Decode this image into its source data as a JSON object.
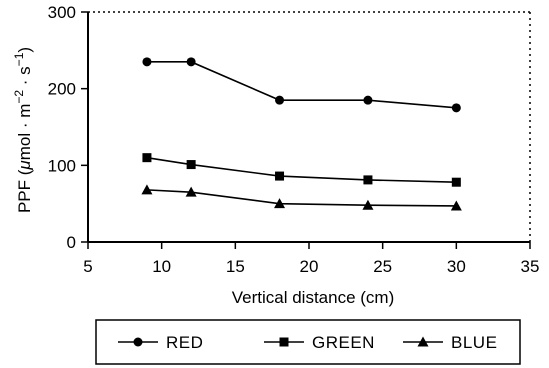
{
  "chart_data": {
    "type": "line",
    "xlabel": "Vertical distance (cm)",
    "ylabel_parts": [
      "PPF (",
      "μ",
      "mol · m",
      "−2",
      " · s",
      "−1",
      ")"
    ],
    "xlim": [
      5,
      35
    ],
    "ylim": [
      0,
      300
    ],
    "xticks": [
      "5",
      "10",
      "15",
      "20",
      "25",
      "30",
      "35"
    ],
    "yticks": [
      "0",
      "100",
      "200",
      "300"
    ],
    "grid": false,
    "legend_position": "bottom",
    "x": [
      9,
      12,
      18,
      24,
      30
    ],
    "series": [
      {
        "name": "RED",
        "marker": "circle",
        "color": "#000000",
        "values": [
          235,
          235,
          185,
          185,
          175
        ]
      },
      {
        "name": "GREEN",
        "marker": "square",
        "color": "#000000",
        "values": [
          110,
          101,
          86,
          81,
          78
        ]
      },
      {
        "name": "BLUE",
        "marker": "triangle",
        "color": "#000000",
        "values": [
          68,
          65,
          50,
          48,
          47
        ]
      }
    ]
  }
}
